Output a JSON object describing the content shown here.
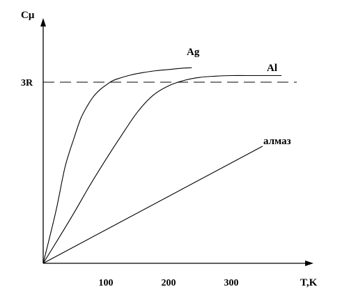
{
  "chart_data": {
    "type": "line",
    "title": "",
    "xlabel": "T,K",
    "ylabel": "Cμ",
    "xlim": [
      0,
      420
    ],
    "ylim": [
      0,
      3.85
    ],
    "x_ticks": [
      100,
      200,
      300
    ],
    "x_tick_labels": [
      "100",
      "200",
      "300"
    ],
    "y_ticks": [
      3
    ],
    "y_tick_labels": [
      "3R"
    ],
    "grid": false,
    "legend": "none",
    "reference_line": {
      "y": 3,
      "label": "3R",
      "style": "dashed"
    },
    "series": [
      {
        "name": "Ag",
        "x": [
          0,
          20,
          35,
          50,
          60,
          70,
          80,
          90,
          100,
          110,
          120,
          140,
          160,
          180,
          200,
          220,
          237
        ],
        "y": [
          0,
          0.85,
          1.6,
          2.1,
          2.4,
          2.6,
          2.76,
          2.87,
          2.95,
          3.02,
          3.06,
          3.12,
          3.16,
          3.19,
          3.21,
          3.23,
          3.24
        ]
      },
      {
        "name": "Al",
        "x": [
          0,
          25,
          50,
          75,
          100,
          125,
          150,
          175,
          200,
          225,
          250,
          275,
          300,
          325,
          350,
          380
        ],
        "y": [
          0,
          0.42,
          0.85,
          1.3,
          1.72,
          2.12,
          2.5,
          2.78,
          2.94,
          3.03,
          3.08,
          3.1,
          3.11,
          3.11,
          3.11,
          3.11
        ]
      },
      {
        "name": "алмаз",
        "x": [
          0,
          350
        ],
        "y": [
          0,
          1.94
        ]
      }
    ]
  }
}
